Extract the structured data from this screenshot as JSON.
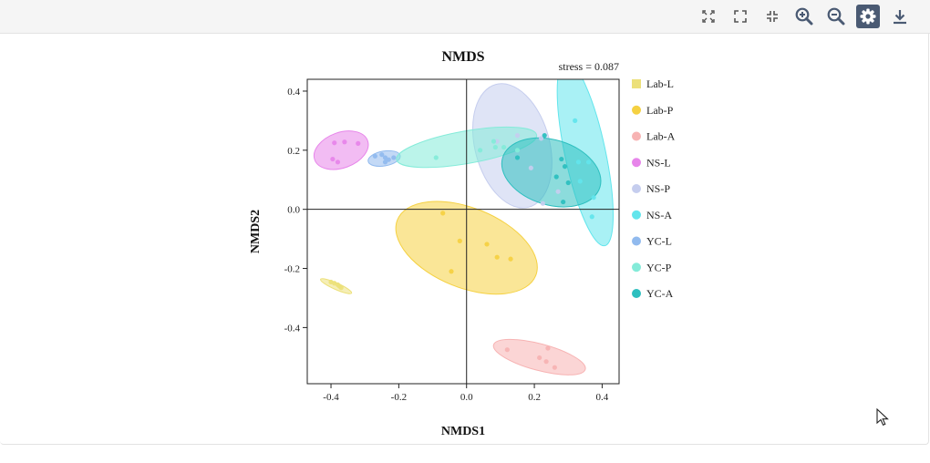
{
  "toolbar": {
    "buttons": [
      {
        "name": "fit-to-view-icon"
      },
      {
        "name": "fullscreen-icon"
      },
      {
        "name": "exit-fullscreen-icon"
      },
      {
        "name": "zoom-in-icon"
      },
      {
        "name": "zoom-out-icon"
      },
      {
        "name": "settings-icon",
        "active": true
      },
      {
        "name": "download-icon"
      }
    ]
  },
  "chart_data": {
    "type": "scatter",
    "title": "NMDS",
    "annotation": "stress = 0.087",
    "xlabel": "NMDS1",
    "ylabel": "NMDS2",
    "xlim": [
      -0.47,
      0.45
    ],
    "ylim": [
      -0.59,
      0.44
    ],
    "xticks": [
      -0.4,
      -0.2,
      0.0,
      0.2,
      0.4
    ],
    "xtick_labels": [
      "-0.4",
      "-0.2",
      "0.0",
      "0.2",
      "0.4"
    ],
    "yticks": [
      -0.4,
      -0.2,
      0.0,
      0.2,
      0.4
    ],
    "ytick_labels": [
      "-0.4",
      "-0.2",
      "0.0",
      "0.2",
      "0.4"
    ],
    "reference_lines": {
      "x": 0,
      "y": 0
    },
    "grid": false,
    "legend_position": "right",
    "series": [
      {
        "name": "Lab-L",
        "color": "#ece07a",
        "marker": "square",
        "points": [
          [
            -0.4,
            -0.246
          ],
          [
            -0.39,
            -0.25
          ],
          [
            -0.38,
            -0.255
          ],
          [
            -0.375,
            -0.26
          ],
          [
            -0.37,
            -0.265
          ]
        ],
        "ellipse": {
          "cx": -0.385,
          "cy": -0.26,
          "rx": 0.05,
          "ry": 0.011,
          "angle": 24
        }
      },
      {
        "name": "Lab-P",
        "color": "#f5d142",
        "marker": "circle",
        "points": [
          [
            -0.07,
            -0.013
          ],
          [
            -0.02,
            -0.107
          ],
          [
            -0.045,
            -0.21
          ],
          [
            0.06,
            -0.118
          ],
          [
            0.09,
            -0.162
          ],
          [
            0.13,
            -0.168
          ]
        ],
        "ellipse": {
          "cx": 0.0,
          "cy": -0.13,
          "rx": 0.22,
          "ry": 0.135,
          "angle": 22
        }
      },
      {
        "name": "Lab-A",
        "color": "#f7b3b3",
        "marker": "circle",
        "points": [
          [
            0.12,
            -0.475
          ],
          [
            0.24,
            -0.47
          ],
          [
            0.215,
            -0.502
          ],
          [
            0.235,
            -0.515
          ],
          [
            0.26,
            -0.535
          ]
        ],
        "ellipse": {
          "cx": 0.215,
          "cy": -0.5,
          "rx": 0.14,
          "ry": 0.045,
          "angle": 15
        }
      },
      {
        "name": "NS-L",
        "color": "#e785ea",
        "marker": "circle",
        "points": [
          [
            -0.39,
            0.225
          ],
          [
            -0.36,
            0.228
          ],
          [
            -0.32,
            0.223
          ],
          [
            -0.395,
            0.17
          ],
          [
            -0.38,
            0.16
          ]
        ],
        "ellipse": {
          "cx": -0.37,
          "cy": 0.2,
          "rx": 0.083,
          "ry": 0.06,
          "angle": -20
        }
      },
      {
        "name": "NS-P",
        "color": "#c5cdee",
        "marker": "circle",
        "points": [
          [
            0.09,
            0.23
          ],
          [
            0.15,
            0.25
          ],
          [
            0.22,
            0.24
          ],
          [
            0.19,
            0.14
          ],
          [
            0.27,
            0.06
          ],
          [
            0.225,
            0.02
          ]
        ],
        "ellipse": {
          "cx": 0.135,
          "cy": 0.215,
          "rx": 0.11,
          "ry": 0.215,
          "angle": -15
        }
      },
      {
        "name": "NS-A",
        "color": "#62e5ec",
        "marker": "circle",
        "points": [
          [
            0.32,
            0.3
          ],
          [
            0.33,
            0.16
          ],
          [
            0.36,
            0.16
          ],
          [
            0.335,
            0.095
          ],
          [
            0.375,
            0.04
          ],
          [
            0.37,
            -0.025
          ]
        ],
        "ellipse": {
          "cx": 0.35,
          "cy": 0.19,
          "rx": 0.06,
          "ry": 0.32,
          "angle": -12
        }
      },
      {
        "name": "YC-L",
        "color": "#91baee",
        "marker": "circle",
        "points": [
          [
            -0.27,
            0.18
          ],
          [
            -0.25,
            0.185
          ],
          [
            -0.24,
            0.175
          ],
          [
            -0.23,
            0.168
          ],
          [
            -0.215,
            0.175
          ],
          [
            -0.24,
            0.16
          ]
        ],
        "ellipse": {
          "cx": -0.243,
          "cy": 0.172,
          "rx": 0.048,
          "ry": 0.025,
          "angle": -10
        }
      },
      {
        "name": "YC-P",
        "color": "#84ebd9",
        "marker": "circle",
        "points": [
          [
            -0.09,
            0.175
          ],
          [
            0.04,
            0.2
          ],
          [
            0.08,
            0.23
          ],
          [
            0.085,
            0.21
          ],
          [
            0.11,
            0.21
          ],
          [
            0.15,
            0.2
          ]
        ],
        "ellipse": {
          "cx": 0.0,
          "cy": 0.21,
          "rx": 0.21,
          "ry": 0.055,
          "angle": -10
        }
      },
      {
        "name": "YC-A",
        "color": "#2dbfbf",
        "marker": "circle",
        "points": [
          [
            0.15,
            0.175
          ],
          [
            0.23,
            0.25
          ],
          [
            0.28,
            0.17
          ],
          [
            0.29,
            0.145
          ],
          [
            0.265,
            0.11
          ],
          [
            0.3,
            0.09
          ],
          [
            0.285,
            0.025
          ]
        ],
        "ellipse": {
          "cx": 0.25,
          "cy": 0.125,
          "rx": 0.15,
          "ry": 0.11,
          "angle": 17
        }
      }
    ]
  }
}
